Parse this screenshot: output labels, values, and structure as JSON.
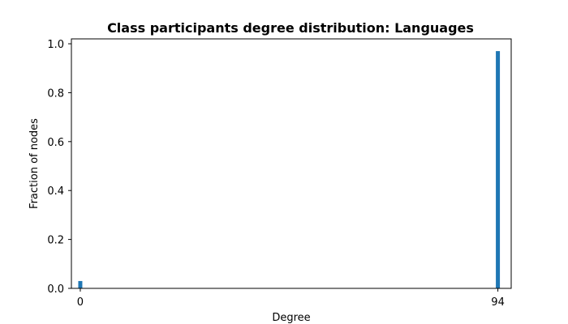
{
  "chart_data": {
    "type": "bar",
    "title": "Class participants degree distribution: Languages",
    "xlabel": "Degree",
    "ylabel": "Fraction of nodes",
    "x": [
      0,
      94
    ],
    "values": [
      0.03,
      0.97
    ],
    "xticks": [
      "0",
      "94"
    ],
    "yticks": [
      "0.0",
      "0.2",
      "0.4",
      "0.6",
      "0.8",
      "1.0"
    ],
    "xlim": [
      -2,
      97
    ],
    "ylim": [
      0,
      1.02
    ],
    "grid": false,
    "bar_color": "#1f77b4"
  }
}
